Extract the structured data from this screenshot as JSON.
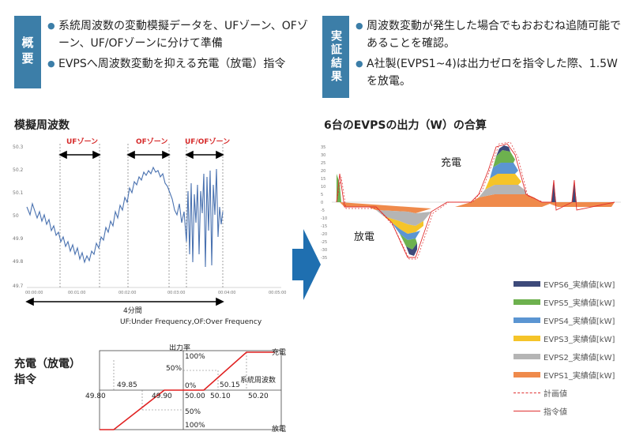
{
  "overview": {
    "badge": "概要",
    "bullets": [
      "系統周波数の変動模擬データを、UFゾーン、OFゾーン、UF/OFゾーンに分けて準備",
      "EVPSへ周波数変動を抑える充電（放電）指令"
    ]
  },
  "verification": {
    "badge": "実証結果",
    "bullets": [
      "周波数変動が発生した場合でもおおむね追随可能であることを確認。",
      "A社製(EVPS1~4)は出力ゼロを指令した際、1.5Wを放電。"
    ]
  },
  "left_chart": {
    "title": "模擬周波数",
    "zones": [
      "UFゾーン",
      "OFゾーン",
      "UF/OFゾーン"
    ],
    "span_label": "4分間",
    "footnote": "UF:Under Frequency,OF:Over Frequency",
    "y_ticks": [
      "50.3",
      "50.2",
      "50.1",
      "50",
      "49.9",
      "49.8",
      "49.7"
    ],
    "x_ticks": [
      "00:00:00",
      "00:01:00",
      "00:02:00",
      "00:03:00",
      "00:04:00",
      "00:05:00"
    ]
  },
  "command_diagram": {
    "title_line1": "充電（放電）",
    "title_line2": "指令",
    "output_rate_label": "出力率",
    "charge_label": "充電",
    "discharge_label": "放電",
    "freq_label": "系統周波数",
    "labels": [
      "100%",
      "50%",
      "0%",
      "50%",
      "100%"
    ],
    "freq_values": [
      "49.80",
      "49.85",
      "49.90",
      "50.00",
      "50.10",
      "50.15",
      "50.20"
    ]
  },
  "right_chart": {
    "title": "6台のEVPSの出力（W）の合算",
    "annotation_charge": "充電",
    "annotation_discharge": "放電",
    "y_ticks": [
      "35",
      "30",
      "25",
      "20",
      "15",
      "10",
      "5",
      "0",
      "-5",
      "-10",
      "-15",
      "-20",
      "-25",
      "-30",
      "-35"
    ]
  },
  "legend": [
    {
      "label": "EVPS6_実績値[kW]",
      "color": "#3d4a7a"
    },
    {
      "label": "EVPS5_実績値[kW]",
      "color": "#6db14e"
    },
    {
      "label": "EVPS4_実績値[kW]",
      "color": "#5b95d2"
    },
    {
      "label": "EVPS3_実績値[kW]",
      "color": "#f5c429"
    },
    {
      "label": "EVPS2_実績値[kW]",
      "color": "#b5b5b5"
    },
    {
      "label": "EVPS1_実績値[kW]",
      "color": "#ef8a4b"
    },
    {
      "label": "計画値",
      "color": "#e03030"
    },
    {
      "label": "指令値",
      "color": "#e03030"
    }
  ]
}
